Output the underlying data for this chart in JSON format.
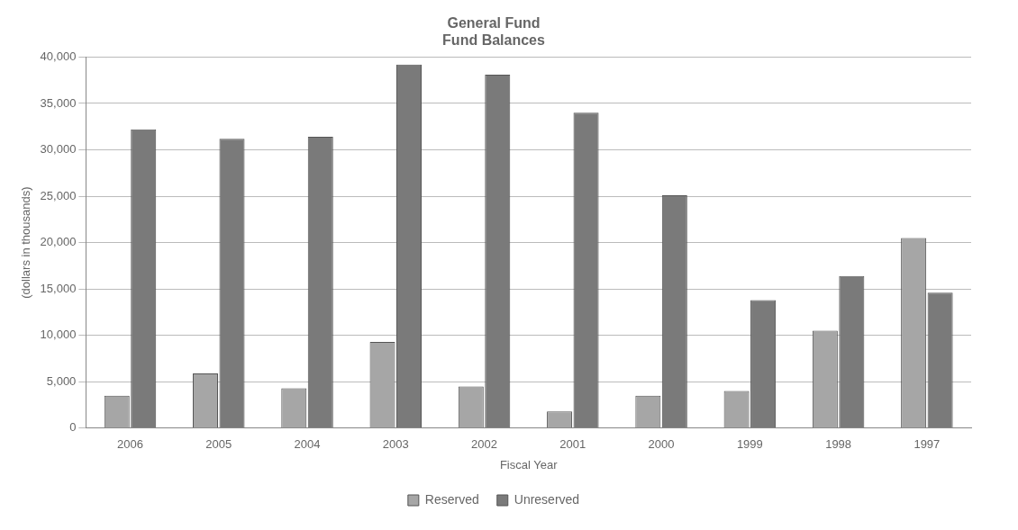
{
  "chart_data": {
    "type": "bar",
    "title": "General Fund\nFund Balances",
    "xlabel": "Fiscal Year",
    "ylabel": "(dollars in thousands)",
    "categories": [
      "2006",
      "2005",
      "2004",
      "2003",
      "2002",
      "2001",
      "2000",
      "1999",
      "1998",
      "1997"
    ],
    "series": [
      {
        "name": "Reserved",
        "color": "#a6a6a6",
        "values": [
          3500,
          5900,
          4300,
          9300,
          4500,
          1800,
          3500,
          4000,
          10500,
          20500
        ]
      },
      {
        "name": "Unreserved",
        "color": "#7a7a7a",
        "values": [
          32200,
          31200,
          31400,
          39200,
          38100,
          34000,
          25100,
          13800,
          16400,
          14600
        ]
      }
    ],
    "ylim": [
      0,
      40000
    ],
    "yticks": [
      0,
      {
        "value": 5000,
        "label": "5,000"
      },
      {
        "value": 10000,
        "label": "10,000"
      },
      {
        "value": 15000,
        "label": "15,000"
      },
      {
        "value": 20000,
        "label": "20,000"
      },
      {
        "value": 25000,
        "label": "25,000"
      },
      {
        "value": 30000,
        "label": "30,000"
      },
      {
        "value": 35000,
        "label": "35,000"
      },
      {
        "value": 40000,
        "label": "40,000"
      }
    ],
    "grid": "y",
    "legend": "bottom"
  }
}
